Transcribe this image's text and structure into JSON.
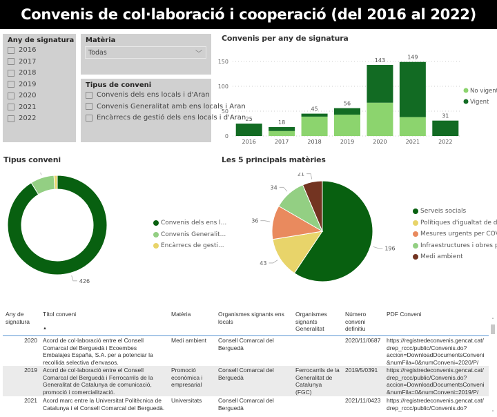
{
  "title": "Convenis de col·laboració i cooperació (del 2016 al 2022)",
  "slicer_year": {
    "title": "Any de signatura",
    "options": [
      "2016",
      "2017",
      "2018",
      "2019",
      "2020",
      "2021",
      "2022"
    ]
  },
  "slicer_materia": {
    "title": "Matèria",
    "value": "Todas"
  },
  "slicer_tipus": {
    "title": "Tipus de conveni",
    "options": [
      "Convenis dels ens locals i d'Aran",
      "Convenis Generalitat amb ens locals i Aran",
      "Encàrrecs de gestió dels ens locals i d'Aran"
    ]
  },
  "colors": {
    "vigent": "#126b23",
    "no_vigent": "#8cd46e",
    "green": "#086010",
    "light": "#93cf83",
    "yellow": "#e8d46a",
    "orange": "#e98a5e",
    "brown": "#733421"
  },
  "chart_data": [
    {
      "type": "bar",
      "title": "Convenis per any de signatura",
      "categories": [
        "2016",
        "2017",
        "2018",
        "2019",
        "2020",
        "2021",
        "2022"
      ],
      "series": [
        {
          "name": "No vigent",
          "values": [
            0,
            10,
            39,
            43,
            67,
            38,
            0
          ]
        },
        {
          "name": "Vigent",
          "values": [
            25,
            8,
            6,
            13,
            76,
            111,
            31
          ]
        }
      ],
      "totals": [
        "25",
        "18",
        "45",
        "56",
        "143",
        "149",
        "31"
      ],
      "yticks": [
        "0",
        "50",
        "100",
        "150"
      ],
      "ylim": [
        0,
        160
      ],
      "legend": "right"
    },
    {
      "type": "pie",
      "title": "Tipus conveni",
      "donut": true,
      "labels": [
        "Convenis dels ens l...",
        "Convenis Generalit...",
        "Encàrrecs de gesti..."
      ],
      "values": [
        426,
        36,
        5
      ],
      "value_labels": [
        "426",
        "36",
        "5"
      ]
    },
    {
      "type": "pie",
      "title": "Les 5 principals matèries",
      "labels": [
        "Serveis socials",
        "Polítiques d'igualtat de d...",
        "Mesures urgents per COV...",
        "Infraestructures i obres p...",
        "Medi ambient"
      ],
      "values": [
        196,
        43,
        36,
        34,
        21
      ],
      "value_labels": [
        "196",
        "43",
        "36",
        "34",
        "21"
      ]
    }
  ],
  "table": {
    "headers": [
      "Any de signatura",
      "Títol conveni",
      "Matèria",
      "Organismes signants ens locals",
      "Organismes signants Generalitat",
      "Número conveni definitiu",
      "PDF Conveni"
    ],
    "sort_indicator": "▲",
    "rows": [
      [
        "2020",
        "Acord de col·laboració entre el Consell Comarcal del Berguedà i Ecoembes Embalajes España, S.A. per a potenciar la recollida selectiva d'envasos.",
        "Medi ambient",
        "Consell Comarcal del Berguedà",
        "",
        "2020/11/0687",
        "https://registredeconvenis.gencat.cat/drep_rccc/public/Convenis.do?accion=DownloadDocumentsConveni&numFila=0&numConveni=2020/P/"
      ],
      [
        "2019",
        "Acord de col·laboració entre el Consell Comarcal del Berguedà i Ferrocarrils de la Generalitat de Catalunya de comunicació, promoció i comercialització.",
        "Promoció econòmica i empresarial",
        "Consell Comarcal del Berguedà",
        "Ferrocarrils de la Generalitat de Catalunya (FGC)",
        "2019/5/0391",
        "https://registredeconvenis.gencat.cat/drep_rccc/public/Convenis.do?accion=DownloadDocumentsConveni&numFila=0&numConveni=2019/P/"
      ],
      [
        "2021",
        "Acord marc entre la Universitat Politècnica de Catalunya i el Consell Comarcal del Berguedà.",
        "Universitats",
        "Consell Comarcal del Berguedà",
        "",
        "2021/11/0423",
        "https://registredeconvenis.gencat.cat/drep_rccc/public/Convenis.do?"
      ]
    ]
  }
}
